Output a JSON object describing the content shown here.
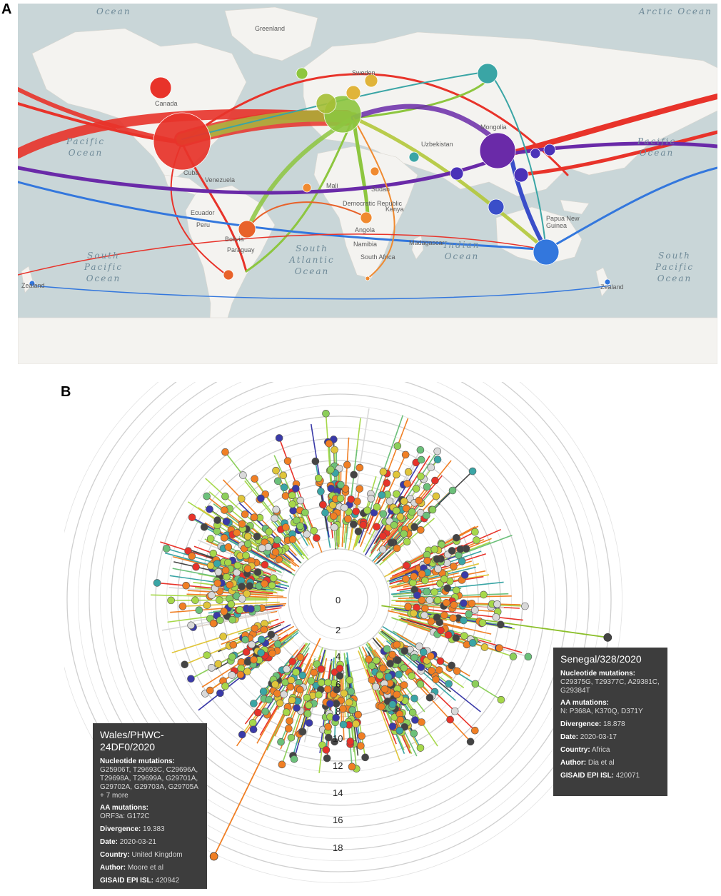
{
  "panels": {
    "a": "A",
    "b": "B"
  },
  "map": {
    "place_labels": [
      "Greenland",
      "Canada",
      "Sweden",
      "Mongolia",
      "Uzbekistan",
      "Cuba",
      "Venezuela",
      "Ecuador",
      "Peru",
      "Bolivia",
      "Paraguay",
      "Mali",
      "Sudan",
      "Kenya",
      "Democratic Republic",
      "Angola",
      "Namibia",
      "South Africa",
      "Madagascar",
      "Papua New Guinea",
      "Zealand",
      "Zealand"
    ],
    "ocean_labels": [
      "Ocean",
      "Arctic Ocean",
      "Pacific Ocean",
      "Pacific Ocean",
      "South Pacific Ocean",
      "South Atlantic Ocean",
      "Indian Ocean",
      "South Pacific Ocean"
    ]
  },
  "tree": {
    "ticks": [
      "0",
      "2",
      "4",
      "6",
      "8",
      "10",
      "12",
      "14",
      "16",
      "18"
    ],
    "tooltip_senegal": {
      "title": "Senegal/328/2020",
      "nuc_head": "Nucleotide mutations:",
      "nuc_value": "C29375G, T29377C, A29381C, G29384T",
      "aa_head": "AA mutations:",
      "aa_value": "N: P368A, K370Q, D371Y",
      "divergence_key": "Divergence:",
      "divergence_value": "18.878",
      "date_key": "Date:",
      "date_value": "2020-03-17",
      "country_key": "Country:",
      "country_value": "Africa",
      "author_key": "Author:",
      "author_value": "Dia et al",
      "gisaid_key": "GISAID EPI ISL:",
      "gisaid_value": "420071"
    },
    "tooltip_wales": {
      "title": "Wales/PHWC-24DF0/2020",
      "nuc_head": "Nucleotide mutations:",
      "nuc_value": "G25906T, T29693C, C29696A, T29698A, T29699A, G29701A, G29702A, G29703A, G29705A + 7 more",
      "aa_head": "AA mutations:",
      "aa_value": "ORF3a: G172C",
      "divergence_key": "Divergence:",
      "divergence_value": "19.383",
      "date_key": "Date:",
      "date_value": "2020-03-21",
      "country_key": "Country:",
      "country_value": "United Kingdom",
      "author_key": "Author:",
      "author_value": "Moore et al",
      "gisaid_key": "GISAID EPI ISL:",
      "gisaid_value": "420942"
    }
  },
  "colors": {
    "north_america": "#e8332a",
    "europe": "#8dc63f",
    "asia": "#6a2aa8",
    "oceania": "#3377dd",
    "south_america": "#e8622a",
    "africa": "#f08a30",
    "teal": "#3aa5a5",
    "orange_tree": "#f07f24",
    "light_green_tree": "#a6d84a",
    "land": "#f4f3f0",
    "ocean": "#c9d6d8"
  }
}
